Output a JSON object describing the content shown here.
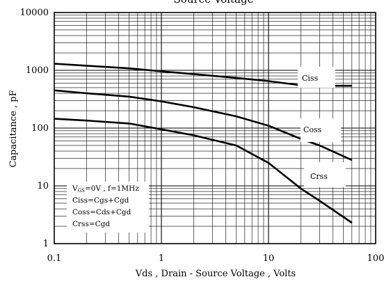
{
  "title": "Source Voltage",
  "chart_data": {
    "type": "line",
    "title": "Source Voltage",
    "xlabel": "Vds , Drain - Source Voltage , Volts",
    "ylabel": "Capacitance , pF",
    "xscale": "log",
    "yscale": "log",
    "xlim": [
      0.1,
      100
    ],
    "ylim": [
      1,
      10000
    ],
    "x_ticks": [
      "0.1",
      "1",
      "10",
      "100"
    ],
    "y_ticks": [
      "1",
      "10",
      "100",
      "1000",
      "10000"
    ],
    "grid": true,
    "series": [
      {
        "name": "Ciss",
        "x": [
          0.1,
          0.2,
          0.5,
          1,
          2,
          5,
          10,
          20,
          30,
          60
        ],
        "y": [
          1300,
          1200,
          1080,
          960,
          860,
          740,
          650,
          550,
          540,
          540
        ]
      },
      {
        "name": "Coss",
        "x": [
          0.1,
          0.2,
          0.5,
          1,
          2,
          5,
          10,
          20,
          30,
          60
        ],
        "y": [
          450,
          400,
          350,
          290,
          230,
          160,
          110,
          65,
          50,
          28
        ]
      },
      {
        "name": "Crss",
        "x": [
          0.1,
          0.2,
          0.5,
          1,
          2,
          5,
          10,
          20,
          30,
          60
        ],
        "y": [
          145,
          135,
          120,
          95,
          75,
          50,
          25,
          9,
          5.5,
          2.3
        ]
      }
    ],
    "legend_box": {
      "line1_v": "V",
      "line1_sub": "GS",
      "line1_rest": "=0V , f=1MHz",
      "line2": "Ciss=Cgs+Cgd",
      "line3": "Coss=Cds+Cgd",
      "line4": "Crss=Cgd"
    }
  }
}
